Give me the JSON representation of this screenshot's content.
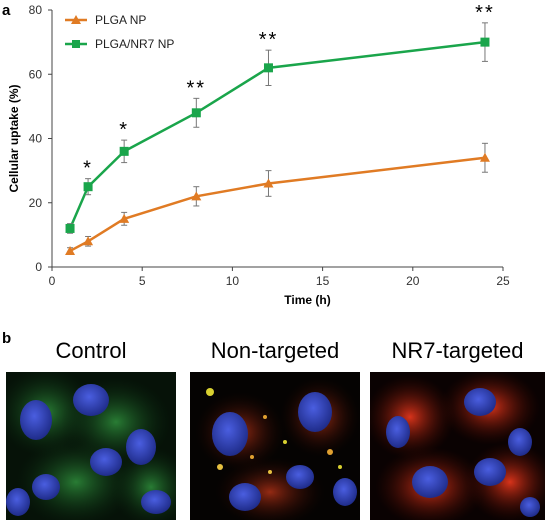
{
  "panel_a_letter": "a",
  "panel_b_letter": "b",
  "chart_data": {
    "type": "line",
    "x": [
      1,
      2,
      4,
      8,
      12,
      24
    ],
    "xlabel": "Time (h)",
    "ylabel": "Cellular uptake (%)",
    "xlim": [
      0,
      25
    ],
    "ylim": [
      0,
      80
    ],
    "xticks": [
      0,
      5,
      10,
      15,
      20,
      25
    ],
    "yticks": [
      0,
      20,
      40,
      60,
      80
    ],
    "grid": false,
    "legend_position": "top-left",
    "series": [
      {
        "name": "PLGA NP",
        "color": "#e07b24",
        "marker": "triangle",
        "values": [
          5,
          8,
          15,
          22,
          26,
          34
        ],
        "errors": [
          1,
          1.5,
          2,
          3,
          4,
          4.5
        ]
      },
      {
        "name": "PLGA/NR7 NP",
        "color": "#1aa54b",
        "marker": "square",
        "values": [
          12,
          25,
          36,
          48,
          62,
          70
        ],
        "errors": [
          1.5,
          2.5,
          3.5,
          4.5,
          5.5,
          6
        ]
      }
    ],
    "annotations": [
      {
        "x": 2,
        "text": "*"
      },
      {
        "x": 4,
        "text": "*"
      },
      {
        "x": 8,
        "text": "**"
      },
      {
        "x": 12,
        "text": "**"
      },
      {
        "x": 24,
        "text": "**"
      }
    ]
  },
  "images": [
    {
      "label": "Control"
    },
    {
      "label": "Non-targeted"
    },
    {
      "label": "NR7-targeted"
    }
  ]
}
